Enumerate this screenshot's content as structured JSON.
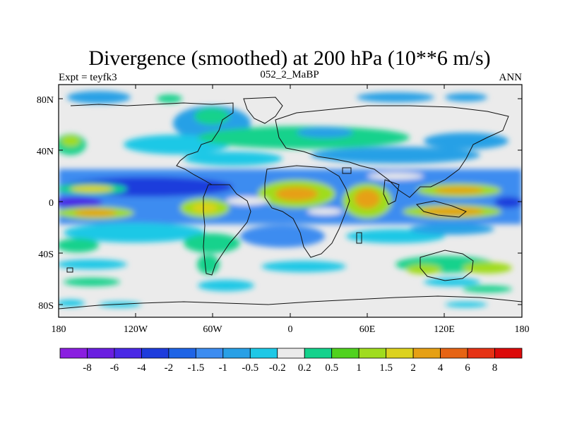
{
  "title": "Divergence (smoothed) at 200 hPa (10**6 m/s)",
  "left_subtitle": "Expt = teyfk3",
  "center_subtitle": "052_2_MaBP",
  "right_subtitle": "ANN",
  "y_ticks": [
    "80N",
    "40N",
    "0",
    "40S",
    "80S"
  ],
  "x_ticks": [
    "180",
    "120W",
    "60W",
    "0",
    "60E",
    "120E",
    "180"
  ],
  "colorbar": {
    "labels": [
      "-8",
      "-6",
      "-4",
      "-2",
      "-1.5",
      "-1",
      "-0.5",
      "-0.2",
      "0.2",
      "0.5",
      "1",
      "1.5",
      "2",
      "4",
      "6",
      "8"
    ],
    "colors": [
      "#8a1ee0",
      "#6a1ee0",
      "#4a28e6",
      "#1e3cdc",
      "#1e64e6",
      "#3c8cf0",
      "#28a0e6",
      "#1ec8e6",
      "#ebebeb",
      "#14d28c",
      "#50d21e",
      "#a0dc1e",
      "#dcd21e",
      "#e6a014",
      "#e66414",
      "#e63214",
      "#dc0a0a"
    ]
  },
  "colors": {
    "background_field": "#ebebeb",
    "coastline": "#111111"
  }
}
